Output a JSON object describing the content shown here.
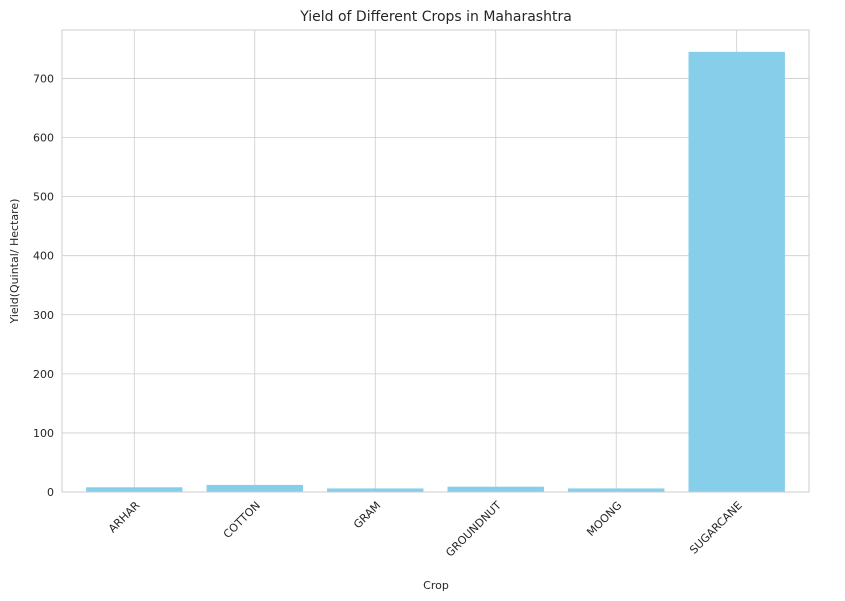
{
  "chart_data": {
    "type": "bar",
    "title": "Yield of Different Crops in Maharashtra",
    "xlabel": "Crop",
    "ylabel": "Yield(Quintal/ Hectare)",
    "categories": [
      "ARHAR",
      "COTTON",
      "GRAM",
      "GROUNDNUT",
      "MOONG",
      "SUGARCANE"
    ],
    "values": [
      8,
      12,
      6,
      9,
      6,
      745
    ],
    "ylim": [
      0,
      782
    ],
    "yticks": [
      0,
      100,
      200,
      300,
      400,
      500,
      600,
      700
    ],
    "grid": true,
    "bar_color": "#87ceeb"
  }
}
